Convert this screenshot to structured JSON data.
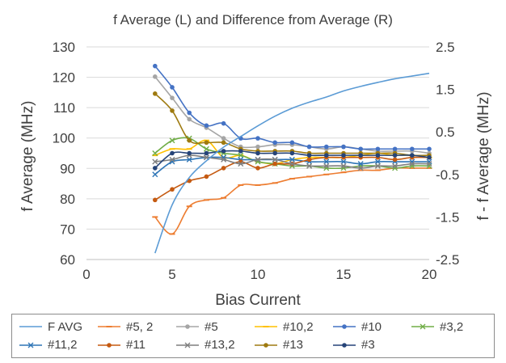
{
  "chart_data": {
    "type": "line",
    "title": "f Average (L) and Difference from Average (R)",
    "xlabel": "Bias Current",
    "ylabel": "f Average (MHz)",
    "y2label": "f - f Average (MHz)",
    "xlim": [
      0,
      20
    ],
    "ylim": [
      60,
      130
    ],
    "y2lim": [
      -2.5,
      2.5
    ],
    "x_ticks": [
      "0",
      "5",
      "10",
      "15",
      "20"
    ],
    "y_ticks": [
      "60",
      "70",
      "80",
      "90",
      "100",
      "110",
      "120",
      "130"
    ],
    "y2_ticks": [
      "-2.5",
      "-1.5",
      "-0.5",
      "0.5",
      "1.5",
      "2.5"
    ],
    "grid": "horizontal",
    "legend_position": "bottom",
    "x": [
      4,
      5,
      6,
      7,
      8,
      9,
      10,
      11,
      12,
      13,
      14,
      15,
      16,
      17,
      18,
      19,
      20
    ],
    "series": [
      {
        "name": "F AVG",
        "axis": "left",
        "color": "#5b9bd5",
        "markers": false,
        "smooth": true,
        "values": [
          62.1,
          78.0,
          87.0,
          92.5,
          97.0,
          100.5,
          104.0,
          107.2,
          109.8,
          111.8,
          113.5,
          115.5,
          117.0,
          118.3,
          119.5,
          120.4,
          121.3
        ]
      },
      {
        "name": "#5, 2",
        "axis": "right",
        "color": "#ed7d31",
        "markers": "dash",
        "values": [
          -1.5,
          -1.9,
          -1.25,
          -1.1,
          -1.05,
          -0.75,
          -0.75,
          -0.7,
          -0.6,
          -0.55,
          -0.5,
          -0.45,
          -0.4,
          -0.4,
          -0.35,
          -0.35,
          -0.35
        ]
      },
      {
        "name": "#5",
        "axis": "right",
        "color": "#a5a5a5",
        "markers": "dot",
        "values": [
          1.8,
          1.3,
          0.8,
          0.6,
          0.35,
          0.15,
          0.15,
          0.2,
          0.2,
          0.15,
          0.1,
          0.15,
          0.1,
          0.05,
          0.05,
          0.05,
          0.0
        ]
      },
      {
        "name": "#10,2",
        "axis": "right",
        "color": "#ffc000",
        "markers": "dash",
        "values": [
          -0.05,
          0.1,
          0.1,
          0.3,
          -0.1,
          -0.05,
          -0.2,
          -0.25,
          -0.15,
          -0.1,
          -0.1,
          -0.1,
          -0.05,
          0.0,
          -0.05,
          -0.05,
          -0.1
        ]
      },
      {
        "name": "#10",
        "axis": "right",
        "color": "#4472c4",
        "markers": "dot",
        "values": [
          2.05,
          1.55,
          0.95,
          0.65,
          0.7,
          0.35,
          0.35,
          0.25,
          0.25,
          0.15,
          0.15,
          0.15,
          0.1,
          0.1,
          0.1,
          0.1,
          0.1
        ]
      },
      {
        "name": "#3,2",
        "axis": "right",
        "color": "#70ad47",
        "markers": "x",
        "values": [
          0.0,
          0.3,
          0.35,
          0.1,
          0.0,
          -0.05,
          -0.2,
          -0.25,
          -0.3,
          -0.3,
          -0.35,
          -0.35,
          -0.3,
          -0.3,
          -0.35,
          -0.3,
          -0.3
        ]
      },
      {
        "name": "#11,2",
        "axis": "right",
        "color": "#2e75b6",
        "markers": "x",
        "values": [
          -0.5,
          -0.2,
          -0.15,
          -0.1,
          -0.1,
          -0.15,
          -0.15,
          -0.15,
          -0.15,
          -0.2,
          -0.2,
          -0.2,
          -0.25,
          -0.2,
          -0.2,
          -0.2,
          -0.2
        ]
      },
      {
        "name": "#11",
        "axis": "right",
        "color": "#c55a11",
        "markers": "dot",
        "values": [
          -1.1,
          -0.85,
          -0.65,
          -0.55,
          -0.35,
          -0.2,
          -0.35,
          -0.25,
          -0.25,
          -0.15,
          -0.1,
          -0.1,
          -0.1,
          -0.1,
          -0.15,
          -0.1,
          -0.1
        ]
      },
      {
        "name": "#13,2",
        "axis": "right",
        "color": "#7f7f7f",
        "markers": "x",
        "values": [
          -0.2,
          -0.15,
          -0.05,
          -0.1,
          -0.15,
          -0.25,
          -0.15,
          -0.15,
          -0.25,
          -0.3,
          -0.3,
          -0.3,
          -0.35,
          -0.3,
          -0.3,
          -0.25,
          -0.25
        ]
      },
      {
        "name": "#13",
        "axis": "right",
        "color": "#9e7a10",
        "markers": "dot",
        "values": [
          1.4,
          1.0,
          0.3,
          0.25,
          0.25,
          0.1,
          0.05,
          0.05,
          0.05,
          0.0,
          0.0,
          0.0,
          0.0,
          0.0,
          0.0,
          -0.05,
          -0.05
        ]
      },
      {
        "name": "#3",
        "axis": "right",
        "color": "#264478",
        "markers": "dot",
        "values": [
          -0.35,
          0.0,
          0.0,
          0.0,
          0.05,
          0.05,
          0.0,
          0.0,
          0.0,
          -0.05,
          -0.05,
          -0.05,
          -0.05,
          -0.05,
          -0.05,
          -0.05,
          -0.1
        ]
      }
    ]
  }
}
